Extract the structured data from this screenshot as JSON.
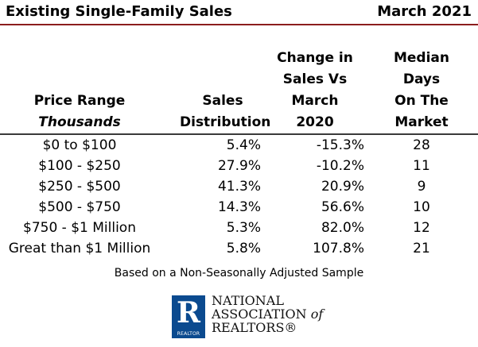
{
  "header": {
    "title_left": "Existing Single-Family Sales",
    "title_right": "March 2021"
  },
  "columns": {
    "price_range": {
      "line1": "Price Range",
      "line2": "Thousands"
    },
    "sales_distribution": {
      "line1": "Sales",
      "line2": "Distribution"
    },
    "change": {
      "line1": "Change in",
      "line2": "Sales Vs",
      "line3": "March",
      "line4": "2020"
    },
    "days": {
      "line1": "Median",
      "line2": "Days",
      "line3": "On The",
      "line4": "Market"
    }
  },
  "rows": [
    {
      "range": "$0 to $100",
      "distribution": "5.4%",
      "change": "-15.3%",
      "days": "28"
    },
    {
      "range": "$100 - $250",
      "distribution": "27.9%",
      "change": "-10.2%",
      "days": "11"
    },
    {
      "range": "$250 - $500",
      "distribution": "41.3%",
      "change": "20.9%",
      "days": "9"
    },
    {
      "range": "$500 - $750",
      "distribution": "14.3%",
      "change": "56.6%",
      "days": "10"
    },
    {
      "range": "$750 - $1 Million",
      "distribution": "5.3%",
      "change": "82.0%",
      "days": "12"
    },
    {
      "range": "Great than $1 Million",
      "distribution": "5.8%",
      "change": "107.8%",
      "days": "21"
    }
  ],
  "footnote": "Based on a Non-Seasonally Adjusted Sample",
  "logo": {
    "mark_letter": "R",
    "mark_caption": "REALTOR",
    "line1": "NATIONAL",
    "line2a": "ASSOCIATION",
    "line2b": "of",
    "line3": "REALTORS®"
  },
  "colors": {
    "title_rule": "#8b1d1d",
    "logo_blue": "#0b4a8f"
  }
}
